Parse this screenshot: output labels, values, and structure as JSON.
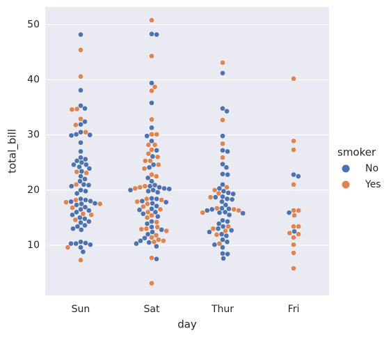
{
  "chart_data": {
    "type": "swarm",
    "x_label": "day",
    "y_label": "total_bill",
    "categories": [
      "Sun",
      "Sat",
      "Thur",
      "Fri"
    ],
    "ylim": [
      0.9,
      53.2
    ],
    "yticks": [
      10,
      20,
      30,
      40,
      50
    ],
    "grid": true,
    "legend_title": "smoker",
    "legend_position": "right",
    "series": [
      {
        "name": "No",
        "color": "#4c72b0",
        "values": [
          [
            48.2,
            38.1,
            35.3,
            34.8,
            32.4,
            31.9,
            30.5,
            30.1,
            30.0,
            29.9,
            28.6,
            27.0,
            25.9,
            25.6,
            25.3,
            25.0,
            24.6,
            24.6,
            24.2,
            23.9,
            23.4,
            22.5,
            22.0,
            21.6,
            21.0,
            20.9,
            20.7,
            20.0,
            19.8,
            19.4,
            18.4,
            18.2,
            18.0,
            17.9,
            17.6,
            17.5,
            17.3,
            16.9,
            16.5,
            16.3,
            16.0,
            15.5,
            15.0,
            14.8,
            14.3,
            14.1,
            13.6,
            13.4,
            13.0,
            12.8,
            10.6,
            10.4,
            10.3,
            10.3,
            10.1,
            9.6,
            8.8
          ],
          [
            48.3,
            48.2,
            39.4,
            35.8,
            31.3,
            29.8,
            28.9,
            27.2,
            26.1,
            24.6,
            24.1,
            22.2,
            21.6,
            20.9,
            20.7,
            20.5,
            20.3,
            20.2,
            20.0,
            20.0,
            19.8,
            19.6,
            18.5,
            18.4,
            18.0,
            17.8,
            17.6,
            17.1,
            16.6,
            16.4,
            16.0,
            15.7,
            15.2,
            14.3,
            13.9,
            13.3,
            12.8,
            12.0,
            11.3,
            10.8,
            10.5,
            10.3,
            9.8,
            7.5,
            12.4
          ],
          [
            41.2,
            34.8,
            34.3,
            29.8,
            27.2,
            27.0,
            24.7,
            24.1,
            22.9,
            22.8,
            21.0,
            20.3,
            19.8,
            19.5,
            19.3,
            18.8,
            18.7,
            18.4,
            18.3,
            17.9,
            17.3,
            16.7,
            16.6,
            16.5,
            16.3,
            16.0,
            15.9,
            15.8,
            15.5,
            14.5,
            14.3,
            13.9,
            13.4,
            13.0,
            12.7,
            12.4,
            12.0,
            11.7,
            11.0,
            10.6,
            10.1,
            9.6,
            8.5,
            8.4,
            7.6
          ],
          [
            22.8,
            22.5,
            15.9,
            12.5
          ]
        ]
      },
      {
        "name": "Yes",
        "color": "#dd8452",
        "values": [
          [
            45.4,
            40.6,
            34.7,
            34.6,
            32.9,
            31.8,
            30.5,
            23.3,
            23.1,
            21.0,
            18.2,
            17.8,
            17.5,
            16.8,
            15.7,
            15.5,
            14.6,
            9.6,
            7.3
          ],
          [
            50.8,
            44.3,
            38.7,
            38.0,
            32.8,
            30.1,
            30.1,
            28.2,
            28.2,
            27.3,
            26.6,
            26.0,
            25.3,
            25.3,
            24.6,
            23.9,
            22.8,
            22.5,
            20.7,
            20.5,
            20.3,
            18.4,
            18.2,
            17.9,
            17.5,
            17.0,
            16.5,
            16.0,
            15.4,
            15.0,
            14.2,
            13.3,
            13.0,
            12.9,
            12.6,
            11.8,
            11.4,
            11.0,
            10.8,
            10.6,
            7.7,
            3.1
          ],
          [
            43.1,
            32.7,
            28.4,
            25.9,
            20.5,
            20.0,
            19.4,
            18.7,
            16.7,
            16.5,
            16.3,
            15.9,
            13.4,
            13.0,
            12.6,
            11.9,
            10.3
          ],
          [
            40.2,
            28.9,
            27.3,
            21.0,
            16.3,
            16.3,
            15.4,
            13.4,
            13.4,
            12.2,
            12.0,
            11.4,
            10.1,
            8.6,
            5.8
          ]
        ]
      }
    ]
  }
}
